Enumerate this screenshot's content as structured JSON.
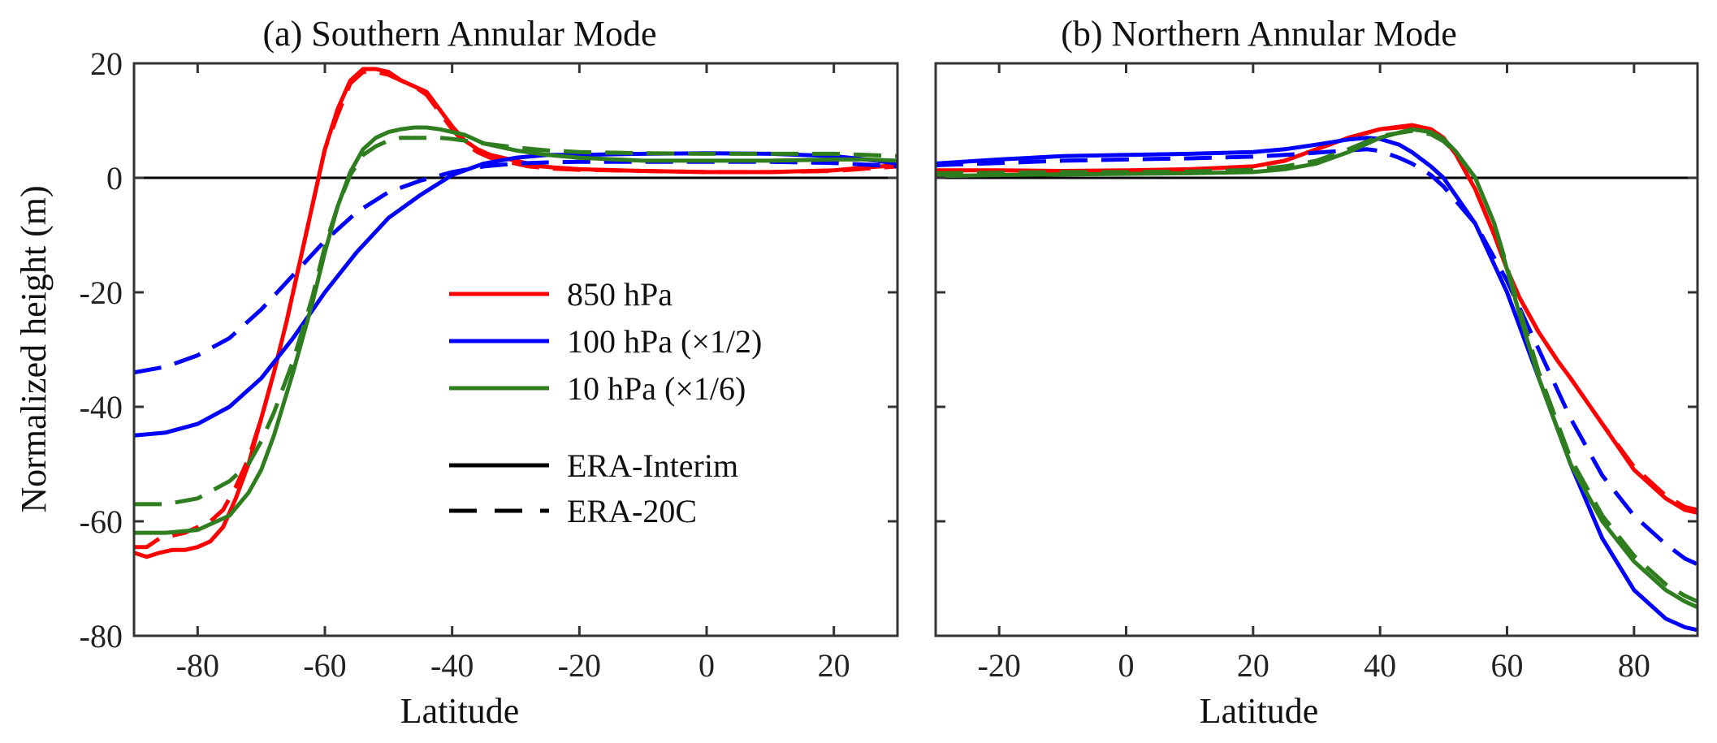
{
  "figure": {
    "ylabel": "Normalized height (m)",
    "legend": {
      "placement": "center-left of panel (a)",
      "level_entries": [
        {
          "label": "850 hPa",
          "color": "#ff0000"
        },
        {
          "label": "100 hPa (×1/2)",
          "color": "#0000ff"
        },
        {
          "label": "10 hPa (×1/6)",
          "color": "#2e7d1e"
        }
      ],
      "style_entries": [
        {
          "label": "ERA-Interim",
          "dash": "solid"
        },
        {
          "label": "ERA-20C",
          "dash": "dashed"
        }
      ]
    }
  },
  "chart_data": [
    {
      "type": "line",
      "title": "(a) Southern Annular Mode",
      "xlabel": "Latitude",
      "ylabel": "Normalized height (m)",
      "xlim": [
        -90,
        30
      ],
      "ylim": [
        -80,
        20
      ],
      "xticks": [
        -80,
        -60,
        -40,
        -20,
        0,
        20
      ],
      "yticks": [
        20,
        0,
        -20,
        -40,
        -60,
        -80
      ],
      "grid": false,
      "zero_line": true,
      "series": [
        {
          "name": "850 hPa",
          "dataset": "ERA-Interim",
          "color": "#ff0000",
          "dash": "solid",
          "x": [
            -90,
            -88,
            -86,
            -84,
            -82,
            -80,
            -78,
            -76,
            -74,
            -72,
            -70,
            -68,
            -66,
            -64,
            -62,
            -60,
            -58,
            -56,
            -54,
            -52,
            -50,
            -48,
            -46,
            -44,
            -42,
            -40,
            -38,
            -36,
            -34,
            -32,
            -30,
            -28,
            -26,
            -24,
            -20,
            -10,
            0,
            10,
            20,
            25,
            30
          ],
          "y": [
            -65.5,
            -66.2,
            -65.5,
            -65,
            -65,
            -64.5,
            -63.5,
            -61,
            -56,
            -50,
            -42,
            -34,
            -25,
            -15,
            -5,
            5,
            12,
            17,
            19,
            19,
            18.5,
            17,
            16,
            15,
            12,
            9,
            6.5,
            5,
            4,
            3.5,
            3,
            2.5,
            2,
            1.8,
            1.5,
            1.2,
            1,
            1,
            1.3,
            1.8,
            2.2
          ]
        },
        {
          "name": "850 hPa",
          "dataset": "ERA-20C",
          "color": "#ff0000",
          "dash": "dashed",
          "x": [
            -90,
            -88,
            -86,
            -84,
            -82,
            -80,
            -78,
            -76,
            -74,
            -72,
            -70,
            -68,
            -66,
            -64,
            -62,
            -60,
            -58,
            -56,
            -54,
            -52,
            -50,
            -48,
            -46,
            -44,
            -42,
            -40,
            -38,
            -36,
            -34,
            -32,
            -30,
            -28,
            -26,
            -24,
            -20,
            -10,
            0,
            10,
            20,
            25,
            30
          ],
          "y": [
            -64.5,
            -64.5,
            -63,
            -62.5,
            -62,
            -61,
            -60,
            -58,
            -54,
            -49,
            -42,
            -34,
            -25,
            -15,
            -5,
            5,
            11,
            16.5,
            18.5,
            18.5,
            18,
            17,
            16,
            14.5,
            11.5,
            8.5,
            6,
            4.5,
            3.5,
            3,
            2.5,
            2,
            1.8,
            1.6,
            1.4,
            1.2,
            1,
            1,
            1.2,
            1.6,
            2
          ]
        },
        {
          "name": "100 hPa (×1/2)",
          "dataset": "ERA-Interim",
          "color": "#0000ff",
          "dash": "solid",
          "x": [
            -90,
            -85,
            -80,
            -75,
            -70,
            -65,
            -60,
            -55,
            -50,
            -45,
            -40,
            -35,
            -30,
            -25,
            -20,
            -10,
            0,
            10,
            20,
            25,
            30
          ],
          "y": [
            -45,
            -44.5,
            -43,
            -40,
            -35,
            -28,
            -20,
            -13,
            -7,
            -3,
            0.5,
            2.5,
            3.5,
            4,
            4,
            4.2,
            4.3,
            4.2,
            3.8,
            3.2,
            2.5
          ]
        },
        {
          "name": "100 hPa (×1/2)",
          "dataset": "ERA-20C",
          "color": "#0000ff",
          "dash": "dashed",
          "x": [
            -90,
            -85,
            -80,
            -75,
            -70,
            -65,
            -60,
            -55,
            -50,
            -45,
            -40,
            -35,
            -30,
            -25,
            -20,
            -10,
            0,
            10,
            20,
            25,
            30
          ],
          "y": [
            -34,
            -33,
            -31,
            -28,
            -23,
            -17,
            -11,
            -6,
            -2.5,
            -0.5,
            1,
            2,
            2.5,
            2.7,
            2.8,
            2.8,
            2.8,
            2.8,
            2.6,
            2.3,
            2
          ]
        },
        {
          "name": "10 hPa (×1/6)",
          "dataset": "ERA-Interim",
          "color": "#2e7d1e",
          "dash": "solid",
          "x": [
            -90,
            -85,
            -80,
            -75,
            -72,
            -70,
            -68,
            -65,
            -62,
            -60,
            -58,
            -56,
            -54,
            -52,
            -50,
            -48,
            -46,
            -44,
            -42,
            -40,
            -38,
            -35,
            -30,
            -25,
            -20,
            -10,
            0,
            10,
            20,
            25,
            30
          ],
          "y": [
            -62,
            -62,
            -61.5,
            -59,
            -55,
            -51,
            -45,
            -34,
            -22,
            -13,
            -5,
            1,
            5,
            7,
            8,
            8.5,
            8.8,
            8.8,
            8.5,
            8,
            7.5,
            6,
            4.8,
            4,
            3.5,
            3,
            3,
            3,
            3.2,
            3.2,
            3
          ]
        },
        {
          "name": "10 hPa (×1/6)",
          "dataset": "ERA-20C",
          "color": "#2e7d1e",
          "dash": "dashed",
          "x": [
            -90,
            -85,
            -80,
            -75,
            -72,
            -70,
            -68,
            -65,
            -62,
            -60,
            -58,
            -56,
            -54,
            -52,
            -50,
            -48,
            -46,
            -44,
            -42,
            -40,
            -38,
            -35,
            -30,
            -25,
            -20,
            -10,
            0,
            10,
            20,
            25,
            30
          ],
          "y": [
            -57,
            -57,
            -56,
            -53,
            -50,
            -46,
            -41,
            -32,
            -21,
            -12,
            -5,
            0.5,
            4,
            5.5,
            6.5,
            7,
            7,
            7,
            7,
            6.8,
            6.5,
            6,
            5.3,
            4.8,
            4.5,
            4.3,
            4.2,
            4.2,
            4.2,
            4,
            3.8
          ]
        }
      ]
    },
    {
      "type": "line",
      "title": "(b) Northern Annular Mode",
      "xlabel": "Latitude",
      "xlim": [
        -30,
        90
      ],
      "ylim": [
        -80,
        20
      ],
      "xticks": [
        -20,
        0,
        20,
        40,
        60,
        80
      ],
      "grid": false,
      "zero_line": true,
      "series": [
        {
          "name": "850 hPa",
          "dataset": "ERA-Interim",
          "color": "#ff0000",
          "dash": "solid",
          "x": [
            -30,
            -20,
            -10,
            0,
            10,
            20,
            25,
            30,
            35,
            40,
            45,
            48,
            50,
            52,
            55,
            58,
            60,
            62,
            65,
            68,
            70,
            75,
            80,
            85,
            88,
            90
          ],
          "y": [
            1.3,
            1.3,
            1.2,
            1.3,
            1.5,
            2,
            3,
            5,
            7,
            8.5,
            9.2,
            8.5,
            7,
            4,
            -2,
            -10,
            -16,
            -21,
            -27,
            -32,
            -35,
            -43,
            -51,
            -56,
            -58,
            -58.5
          ]
        },
        {
          "name": "850 hPa",
          "dataset": "ERA-20C",
          "color": "#ff0000",
          "dash": "dashed",
          "x": [
            -30,
            -20,
            -10,
            0,
            10,
            20,
            25,
            30,
            35,
            40,
            45,
            48,
            50,
            52,
            55,
            58,
            60,
            62,
            65,
            68,
            70,
            75,
            80,
            85,
            88,
            90
          ],
          "y": [
            1.2,
            1.2,
            1.2,
            1.2,
            1.4,
            2,
            3,
            5,
            7,
            8.5,
            9,
            8.3,
            6.8,
            4,
            -2,
            -10,
            -16,
            -21,
            -27,
            -32,
            -35,
            -43,
            -50.5,
            -55.5,
            -57.5,
            -58
          ]
        },
        {
          "name": "100 hPa (×1/2)",
          "dataset": "ERA-Interim",
          "color": "#0000ff",
          "dash": "solid",
          "x": [
            -30,
            -20,
            -10,
            0,
            10,
            20,
            25,
            30,
            35,
            38,
            40,
            43,
            45,
            48,
            50,
            55,
            60,
            65,
            70,
            75,
            80,
            85,
            88,
            90
          ],
          "y": [
            2.5,
            3.2,
            3.8,
            4,
            4.2,
            4.5,
            5,
            5.8,
            6.7,
            7,
            6.8,
            5.8,
            4.5,
            2,
            0,
            -8,
            -20,
            -35,
            -50,
            -63,
            -72,
            -77,
            -78.5,
            -79
          ]
        },
        {
          "name": "100 hPa (×1/2)",
          "dataset": "ERA-20C",
          "color": "#0000ff",
          "dash": "dashed",
          "x": [
            -30,
            -20,
            -10,
            0,
            10,
            20,
            25,
            30,
            35,
            38,
            40,
            43,
            45,
            48,
            50,
            55,
            60,
            65,
            70,
            75,
            80,
            85,
            88,
            90
          ],
          "y": [
            2.2,
            2.6,
            3,
            3.2,
            3.4,
            3.7,
            4,
            4.4,
            4.8,
            5,
            4.7,
            3.5,
            2.5,
            0.5,
            -1.5,
            -8,
            -18,
            -30,
            -42,
            -52,
            -59,
            -64,
            -66.5,
            -67.5
          ]
        },
        {
          "name": "10 hPa (×1/6)",
          "dataset": "ERA-Interim",
          "color": "#2e7d1e",
          "dash": "solid",
          "x": [
            -30,
            -20,
            -10,
            0,
            10,
            20,
            25,
            30,
            35,
            40,
            45,
            48,
            50,
            52,
            55,
            58,
            60,
            62,
            65,
            68,
            70,
            75,
            80,
            85,
            88,
            90
          ],
          "y": [
            0.3,
            0.5,
            0.6,
            0.7,
            0.8,
            1,
            1.5,
            2.5,
            4.5,
            7,
            8.5,
            8,
            6.8,
            4.5,
            0,
            -8,
            -16,
            -24,
            -35,
            -44,
            -50,
            -60,
            -67,
            -72,
            -74,
            -75
          ]
        },
        {
          "name": "10 hPa (×1/6)",
          "dataset": "ERA-20C",
          "color": "#2e7d1e",
          "dash": "dashed",
          "x": [
            -30,
            -20,
            -10,
            0,
            10,
            20,
            25,
            30,
            35,
            40,
            45,
            48,
            50,
            52,
            55,
            58,
            60,
            62,
            65,
            68,
            70,
            75,
            80,
            85,
            88,
            90
          ],
          "y": [
            0.8,
            0.9,
            1,
            1,
            1.1,
            1.4,
            2,
            3,
            5,
            7.3,
            8.2,
            7.6,
            6.4,
            4.3,
            0,
            -8,
            -15.5,
            -23,
            -34,
            -43,
            -49,
            -59,
            -66,
            -71,
            -73,
            -74
          ]
        }
      ]
    }
  ]
}
